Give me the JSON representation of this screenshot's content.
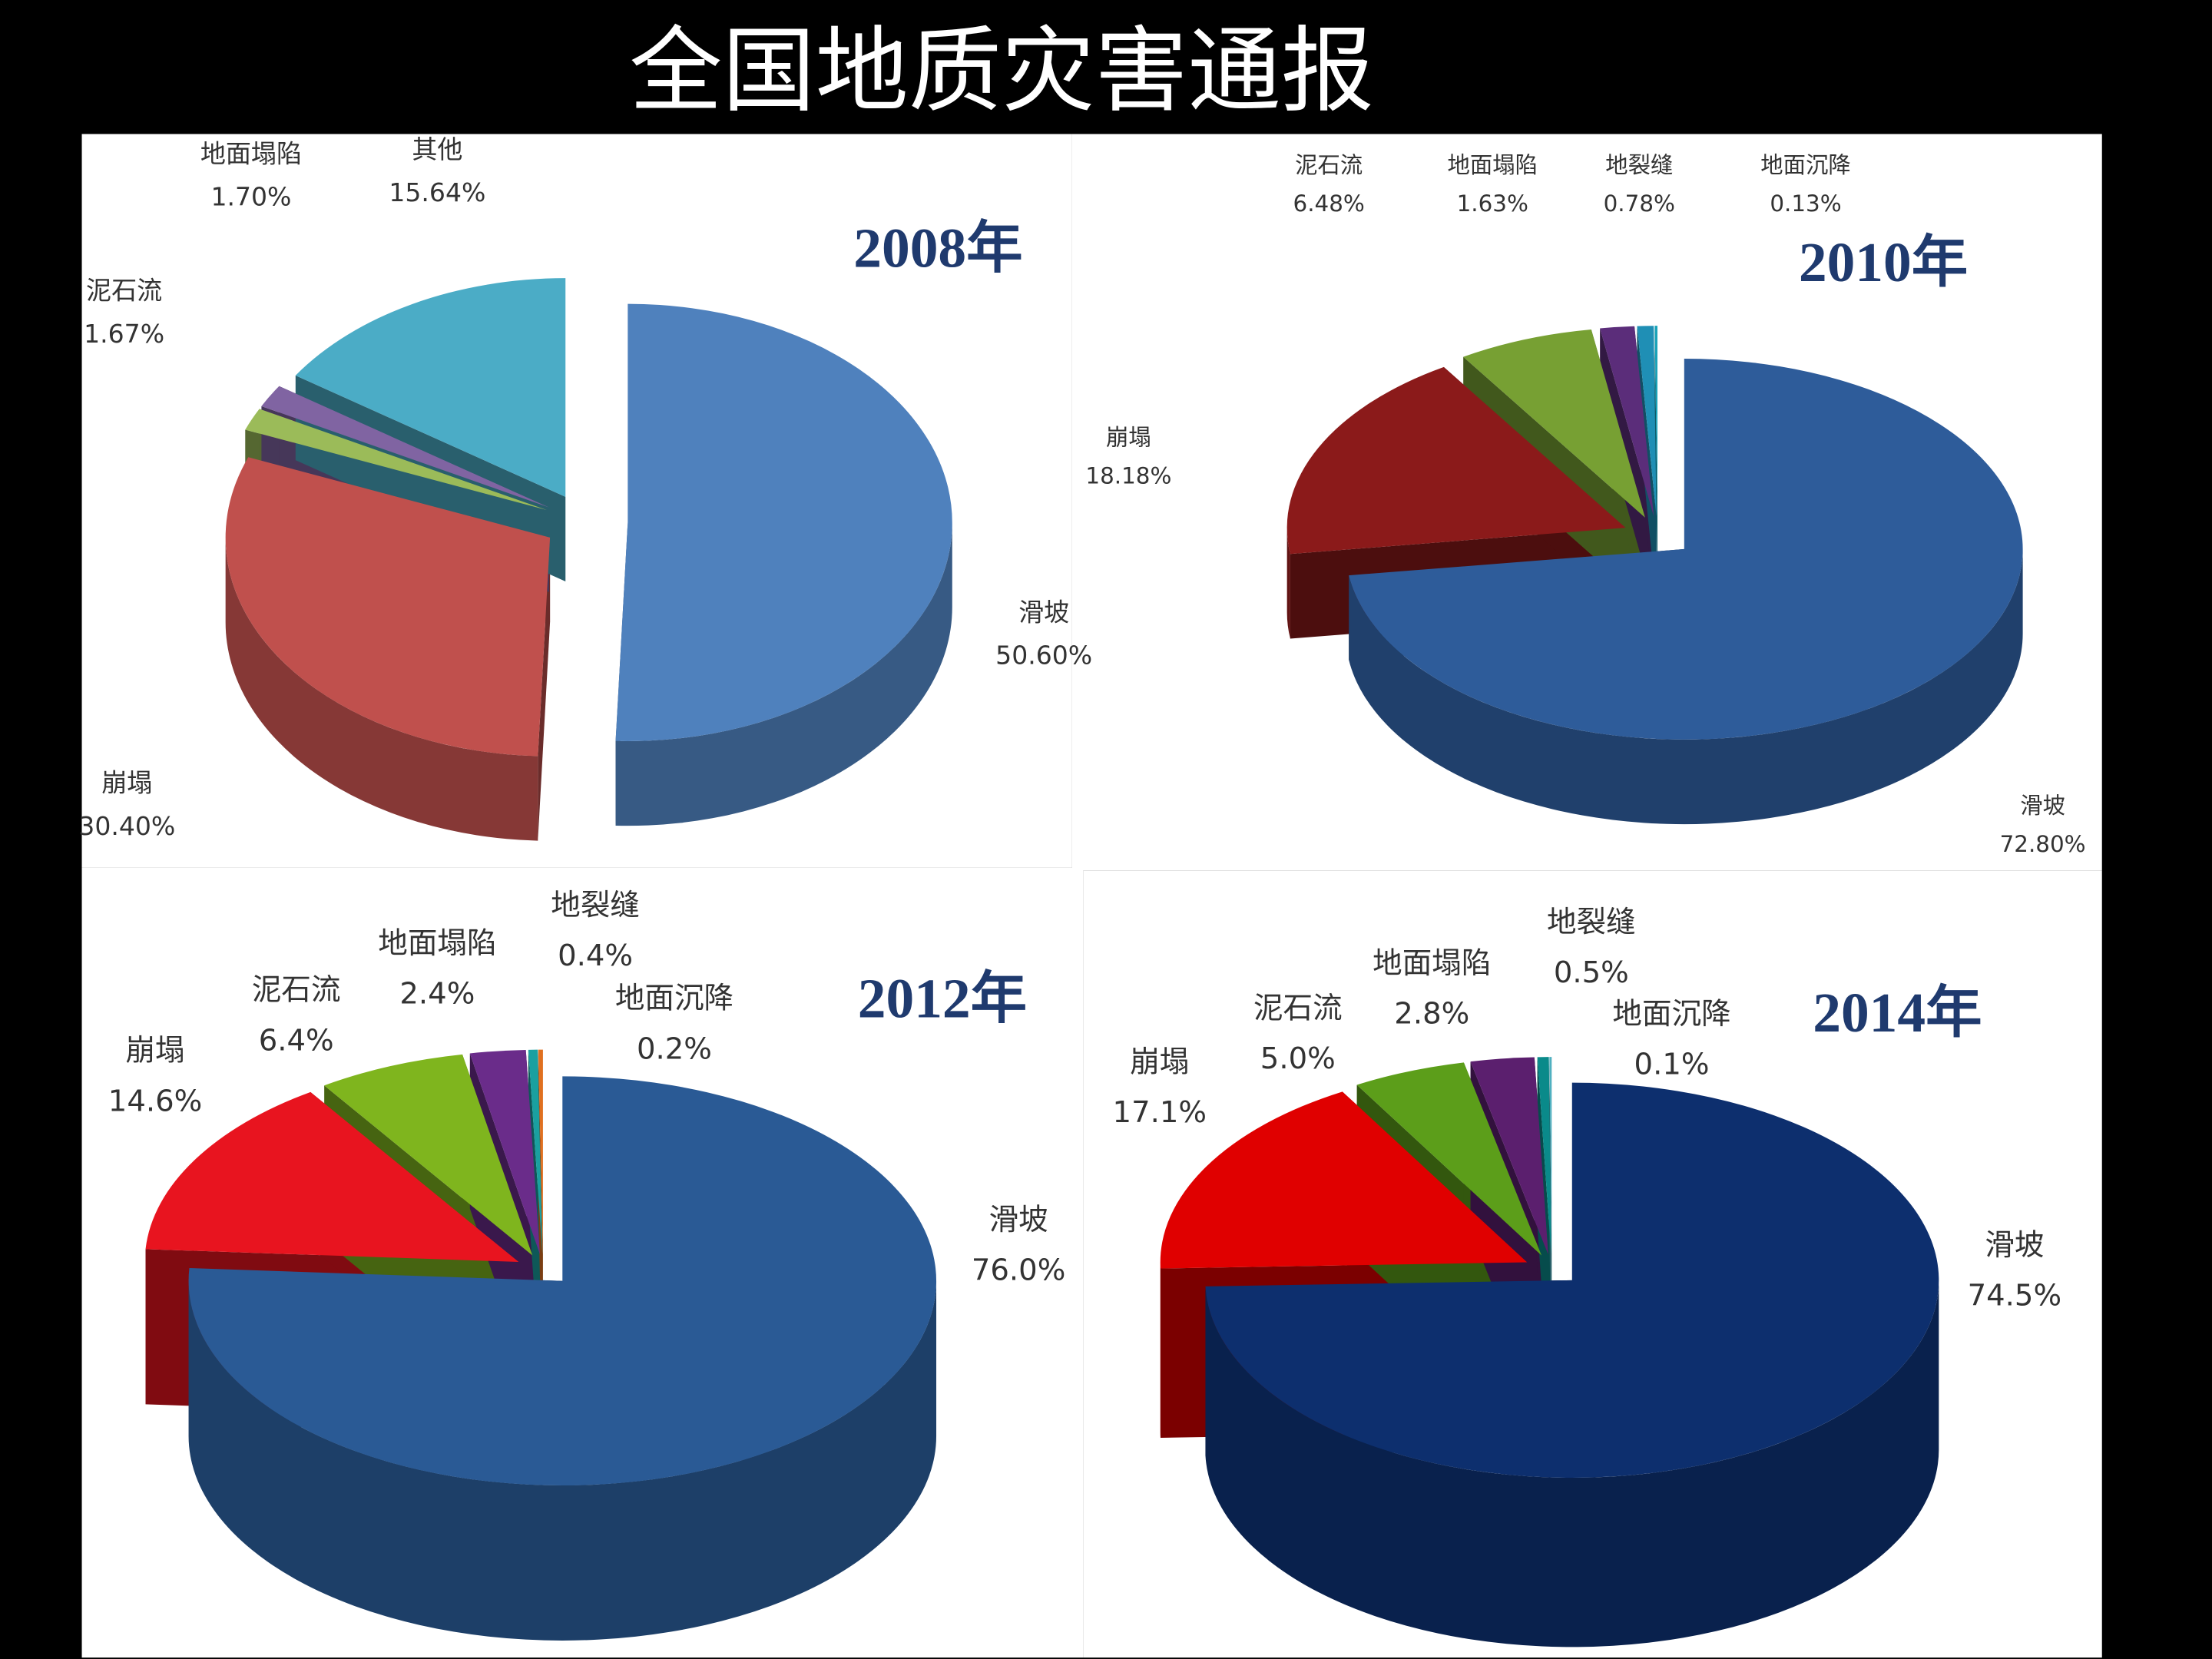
{
  "title": "全国地质灾害通报",
  "chart_data": [
    {
      "type": "pie",
      "title": "2008年",
      "categories": [
        "滑坡",
        "崩塌",
        "泥石流",
        "地面塌陷",
        "其他"
      ],
      "values": [
        50.6,
        30.4,
        1.67,
        1.7,
        15.64
      ],
      "value_labels": [
        "50.60%",
        "30.40%",
        "1.67%",
        "1.70%",
        "15.64%"
      ],
      "colors": [
        "#4f81bd",
        "#c0504d",
        "#9bbb59",
        "#8064a2",
        "#4bacc6"
      ]
    },
    {
      "type": "pie",
      "title": "2010年",
      "categories": [
        "滑坡",
        "崩塌",
        "泥石流",
        "地面塌陷",
        "地裂缝",
        "地面沉降"
      ],
      "values": [
        72.8,
        18.18,
        6.48,
        1.63,
        0.78,
        0.13
      ],
      "value_labels": [
        "72.80%",
        "18.18%",
        "6.48%",
        "1.63%",
        "0.78%",
        "0.13%"
      ],
      "colors": [
        "#2e5c9a",
        "#8b1a1a",
        "#77a033",
        "#5b2d7a",
        "#1f8fb5",
        "#17a2b8"
      ]
    },
    {
      "type": "pie",
      "title": "2012年",
      "categories": [
        "滑坡",
        "崩塌",
        "泥石流",
        "地面塌陷",
        "地裂缝",
        "地面沉降"
      ],
      "values": [
        76.0,
        14.6,
        6.4,
        2.4,
        0.4,
        0.2
      ],
      "value_labels": [
        "76.0%",
        "14.6%",
        "6.4%",
        "2.4%",
        "0.4%",
        "0.2%"
      ],
      "colors": [
        "#2a5a95",
        "#e8141f",
        "#7fb51e",
        "#6a2c8a",
        "#1aa0a0",
        "#e07020"
      ]
    },
    {
      "type": "pie",
      "title": "2014年",
      "categories": [
        "滑坡",
        "崩塌",
        "泥石流",
        "地面塌陷",
        "地裂缝",
        "地面沉降"
      ],
      "values": [
        74.5,
        17.1,
        5.0,
        2.8,
        0.5,
        0.1
      ],
      "value_labels": [
        "74.5%",
        "17.1%",
        "5.0%",
        "2.8%",
        "0.5%",
        "0.1%"
      ],
      "colors": [
        "#0d2f6e",
        "#e00000",
        "#5c9e1a",
        "#5b1f6e",
        "#0a8a8a",
        "#4fb0c0"
      ]
    }
  ]
}
